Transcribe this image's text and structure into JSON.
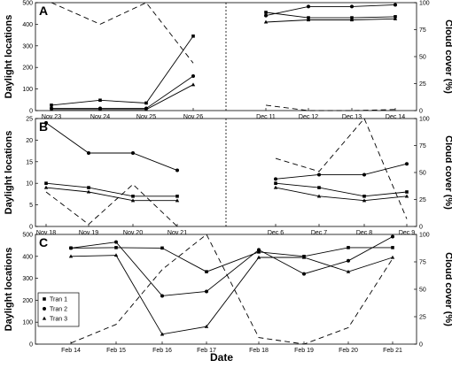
{
  "figure": {
    "xlabel": "Date",
    "legend": {
      "entries": [
        "Tran 1",
        "Tran 2",
        "Tran 3"
      ],
      "location": "bottom-left of panel C"
    }
  },
  "chart_data": [
    {
      "panel": "A",
      "type": "line",
      "ylabel": "Daylight locations",
      "y2label": "Cloud cover (%)",
      "ylim": [
        0,
        500
      ],
      "y2lim": [
        0,
        100
      ],
      "yticks": [
        "0",
        "100",
        "200",
        "300",
        "400",
        "500"
      ],
      "y2ticks": [
        "0",
        "25",
        "50",
        "75",
        "100"
      ],
      "categories": [
        "Nov 23",
        "Nov 24",
        "Nov 25",
        "Nov 26",
        "Dec 11",
        "Dec 12",
        "Dec 13",
        "Dec 14"
      ],
      "break_after_index": 3,
      "series": [
        {
          "name": "Tran 1",
          "marker": "square",
          "values": [
            25,
            48,
            35,
            345,
            455,
            430,
            430,
            435
          ]
        },
        {
          "name": "Tran 2",
          "marker": "circle",
          "values": [
            10,
            10,
            10,
            160,
            440,
            482,
            482,
            490
          ]
        },
        {
          "name": "Tran 3",
          "marker": "triangle",
          "values": [
            5,
            5,
            5,
            120,
            410,
            420,
            420,
            425
          ]
        }
      ],
      "cloud_cover": [
        100,
        80,
        100,
        44,
        5,
        0,
        0,
        1
      ]
    },
    {
      "panel": "B",
      "type": "line",
      "ylabel": "Daylight locations",
      "y2label": "Cloud cover (%)",
      "ylim": [
        0,
        25
      ],
      "y2lim": [
        0,
        100
      ],
      "yticks": [
        "0",
        "5",
        "10",
        "15",
        "20",
        "25"
      ],
      "y2ticks": [
        "0",
        "25",
        "50",
        "75",
        "100"
      ],
      "categories": [
        "Nov 18",
        "Nov 19",
        "Nov 20",
        "Nov 21",
        "Dec 6",
        "Dec 7",
        "Dec 8",
        "Dec 9"
      ],
      "break_after_index": 3,
      "series": [
        {
          "name": "Tran 1",
          "marker": "square",
          "values": [
            10,
            9,
            7,
            7,
            10,
            9,
            7,
            8
          ]
        },
        {
          "name": "Tran 2",
          "marker": "circle",
          "values": [
            24,
            17,
            17,
            13,
            11,
            12,
            12,
            14.5
          ]
        },
        {
          "name": "Tran 3",
          "marker": "triangle",
          "values": [
            9,
            8,
            6,
            6,
            9,
            7,
            6,
            7
          ]
        }
      ],
      "cloud_cover": [
        32,
        2,
        39,
        0,
        63,
        51,
        100,
        7
      ]
    },
    {
      "panel": "C",
      "type": "line",
      "ylabel": "Daylight locations",
      "y2label": "Cloud cover (%)",
      "ylim": [
        0,
        500
      ],
      "y2lim": [
        0,
        100
      ],
      "yticks": [
        "0",
        "100",
        "200",
        "300",
        "400",
        "500"
      ],
      "y2ticks": [
        "0",
        "25",
        "50",
        "75",
        "100"
      ],
      "categories": [
        "Feb 14",
        "Feb 15",
        "Feb 16",
        "Feb 17",
        "Feb 18",
        "Feb 19",
        "Feb 20",
        "Feb 21"
      ],
      "break_after_index": null,
      "series": [
        {
          "name": "Tran 1",
          "marker": "square",
          "values": [
            438,
            440,
            438,
            330,
            420,
            400,
            440,
            440
          ]
        },
        {
          "name": "Tran 2",
          "marker": "circle",
          "values": [
            438,
            465,
            220,
            240,
            430,
            320,
            380,
            490
          ]
        },
        {
          "name": "Tran 3",
          "marker": "triangle",
          "values": [
            400,
            405,
            45,
            80,
            395,
            395,
            330,
            395
          ]
        }
      ],
      "cloud_cover": [
        1,
        18,
        68,
        100,
        6,
        0,
        15,
        78
      ]
    }
  ]
}
